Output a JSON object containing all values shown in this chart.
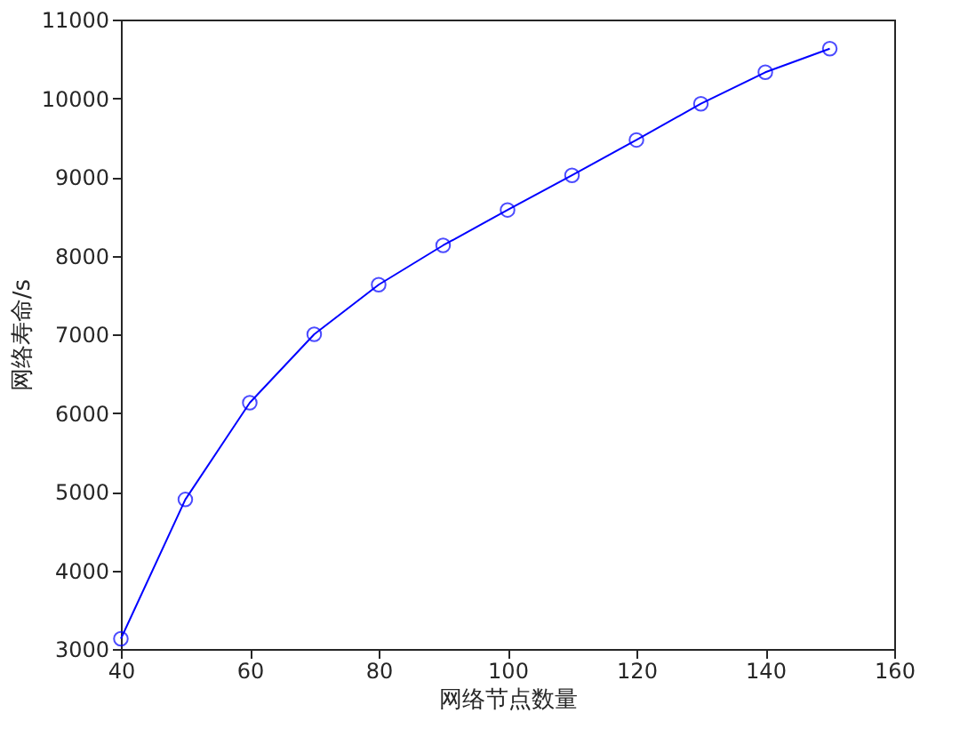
{
  "chart_data": {
    "type": "line",
    "xlabel": "网络节点数量",
    "ylabel": "网络寿命/s",
    "x": [
      40,
      50,
      60,
      70,
      80,
      90,
      100,
      110,
      120,
      130,
      140,
      150
    ],
    "series": [
      {
        "color": "#0000ff",
        "values": [
          3130,
          4900,
          6130,
          7000,
          7630,
          8130,
          8580,
          9020,
          9470,
          9930,
          10330,
          10630
        ]
      }
    ],
    "xlim": [
      40,
      160
    ],
    "xticks": [
      40,
      60,
      80,
      100,
      120,
      140,
      160
    ],
    "ylim": [
      3000,
      11000
    ],
    "yticks": [
      3000,
      4000,
      5000,
      6000,
      7000,
      8000,
      9000,
      10000,
      11000
    ],
    "grid": false,
    "legend": false,
    "marker": "circle",
    "line_style": "solid"
  }
}
